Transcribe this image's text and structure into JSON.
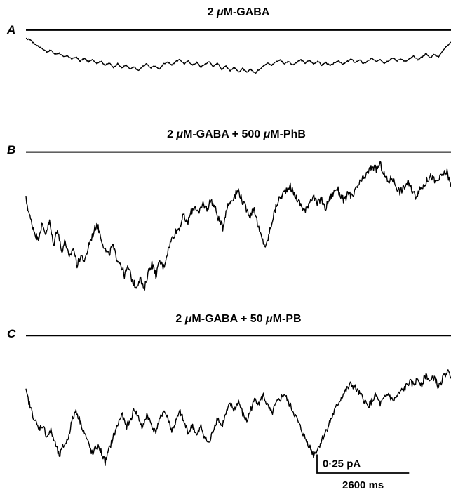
{
  "chart_data": {
    "type": "line",
    "panels": [
      {
        "letter": "A",
        "label_parts": [
          "2 ",
          "μ",
          "M-GABA"
        ],
        "baseline_level": 0,
        "trace": [
          -0.13,
          -0.14,
          -0.2,
          -0.24,
          -0.28,
          -0.32,
          -0.3,
          -0.36,
          -0.34,
          -0.4,
          -0.38,
          -0.43,
          -0.4,
          -0.46,
          -0.42,
          -0.47,
          -0.44,
          -0.49,
          -0.46,
          -0.52,
          -0.49,
          -0.55,
          -0.5,
          -0.56,
          -0.52,
          -0.58,
          -0.55,
          -0.6,
          -0.54,
          -0.5,
          -0.56,
          -0.53,
          -0.58,
          -0.5,
          -0.47,
          -0.52,
          -0.46,
          -0.44,
          -0.5,
          -0.46,
          -0.52,
          -0.48,
          -0.55,
          -0.5,
          -0.47,
          -0.54,
          -0.49,
          -0.58,
          -0.53,
          -0.6,
          -0.55,
          -0.62,
          -0.57,
          -0.63,
          -0.58,
          -0.64,
          -0.58,
          -0.53,
          -0.48,
          -0.52,
          -0.47,
          -0.44,
          -0.5,
          -0.46,
          -0.52,
          -0.48,
          -0.44,
          -0.49,
          -0.45,
          -0.5,
          -0.46,
          -0.52,
          -0.48,
          -0.53,
          -0.49,
          -0.45,
          -0.51,
          -0.47,
          -0.43,
          -0.48,
          -0.44,
          -0.5,
          -0.46,
          -0.42,
          -0.47,
          -0.43,
          -0.49,
          -0.45,
          -0.41,
          -0.46,
          -0.42,
          -0.47,
          -0.43,
          -0.39,
          -0.44,
          -0.4,
          -0.35,
          -0.41,
          -0.36,
          -0.4,
          -0.3,
          -0.24,
          -0.18
        ],
        "ylim": [
          -0.75,
          0.05
        ]
      },
      {
        "letter": "B",
        "label_parts": [
          "2 ",
          "μ",
          "M-GABA + 500 ",
          "μ",
          "M-PhB"
        ],
        "baseline_level": 0,
        "trace": [
          -0.59,
          -0.82,
          -0.98,
          -1.1,
          -0.92,
          -1.02,
          -0.88,
          -1.18,
          -0.95,
          -1.25,
          -1.12,
          -1.35,
          -1.2,
          -1.42,
          -1.3,
          -1.38,
          -1.16,
          -1.04,
          -0.9,
          -1.06,
          -1.22,
          -1.3,
          -1.18,
          -1.33,
          -1.4,
          -1.55,
          -1.45,
          -1.62,
          -1.7,
          -1.58,
          -1.75,
          -1.52,
          -1.4,
          -1.55,
          -1.38,
          -1.45,
          -1.25,
          -1.1,
          -1.0,
          -0.95,
          -0.8,
          -0.9,
          -0.75,
          -0.68,
          -0.78,
          -0.65,
          -0.72,
          -0.6,
          -0.7,
          -0.85,
          -0.95,
          -0.7,
          -0.62,
          -0.55,
          -0.48,
          -0.62,
          -0.72,
          -0.8,
          -0.7,
          -0.95,
          -1.1,
          -1.2,
          -0.98,
          -0.78,
          -0.62,
          -0.55,
          -0.48,
          -0.42,
          -0.52,
          -0.6,
          -0.68,
          -0.75,
          -0.62,
          -0.55,
          -0.66,
          -0.58,
          -0.72,
          -0.6,
          -0.52,
          -0.45,
          -0.55,
          -0.62,
          -0.5,
          -0.58,
          -0.45,
          -0.38,
          -0.32,
          -0.25,
          -0.18,
          -0.22,
          -0.15,
          -0.28,
          -0.38,
          -0.32,
          -0.42,
          -0.5,
          -0.45,
          -0.38,
          -0.48,
          -0.55,
          -0.48,
          -0.42,
          -0.35,
          -0.3,
          -0.38,
          -0.34,
          -0.28,
          -0.25,
          -0.44
        ],
        "ylim": [
          -1.78,
          0.05
        ]
      },
      {
        "letter": "C",
        "label_parts": [
          "2 ",
          "μ",
          "M-GABA + 50 ",
          "μ",
          "M-PB"
        ],
        "baseline_level": 0,
        "trace": [
          -0.75,
          -0.95,
          -1.12,
          -1.25,
          -1.2,
          -1.35,
          -1.28,
          -1.45,
          -1.62,
          -1.48,
          -1.4,
          -1.15,
          -1.0,
          -1.15,
          -1.3,
          -1.45,
          -1.6,
          -1.48,
          -1.55,
          -1.7,
          -1.52,
          -1.35,
          -1.2,
          -1.05,
          -1.22,
          -1.15,
          -0.98,
          -1.1,
          -1.25,
          -1.05,
          -1.18,
          -1.3,
          -1.15,
          -1.0,
          -1.1,
          -1.28,
          -1.15,
          -1.02,
          -1.18,
          -1.3,
          -1.2,
          -1.35,
          -1.22,
          -1.38,
          -1.45,
          -1.25,
          -1.1,
          -1.22,
          -1.05,
          -0.92,
          -1.0,
          -0.88,
          -1.05,
          -1.15,
          -0.98,
          -0.85,
          -0.9,
          -0.8,
          -0.95,
          -1.05,
          -0.92,
          -0.85,
          -0.78,
          -0.9,
          -1.0,
          -1.12,
          -1.25,
          -1.38,
          -1.48,
          -1.6,
          -1.52,
          -1.4,
          -1.28,
          -1.15,
          -1.02,
          -0.9,
          -0.8,
          -0.72,
          -0.65,
          -0.7,
          -0.78,
          -0.85,
          -0.95,
          -0.88,
          -0.8,
          -0.92,
          -0.85,
          -0.78,
          -0.88,
          -0.82,
          -0.75,
          -0.7,
          -0.62,
          -0.66,
          -0.58,
          -0.65,
          -0.52,
          -0.62,
          -0.55,
          -0.7,
          -0.58,
          -0.48,
          -0.55
        ],
        "ylim": [
          -1.75,
          0.05
        ]
      }
    ],
    "scale_bar": {
      "current_label": "0·25 pA",
      "current_value": 0.25,
      "time_label": "2600 ms",
      "time_value_ms": 2600
    },
    "x_duration_ms": 12000
  }
}
